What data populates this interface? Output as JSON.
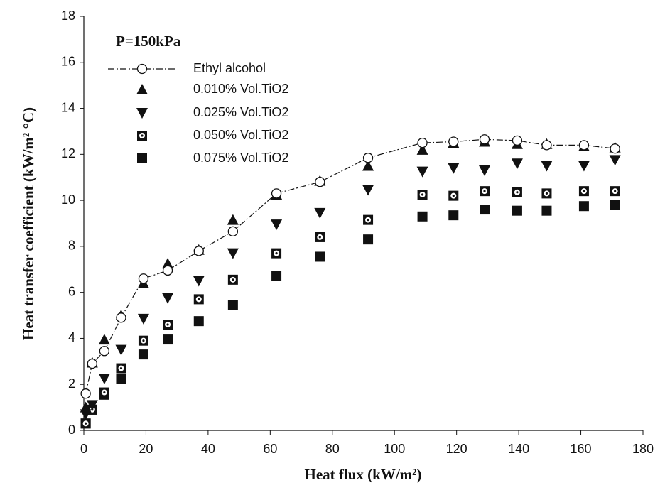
{
  "chart_data": {
    "type": "scatter",
    "annotation": "P=150kPa",
    "x_label": "Heat flux (kW/m²)",
    "y_label": "Heat transfer coefficient (kW/m² °C)",
    "x": [
      0.6,
      2.7,
      6.6,
      12,
      19.2,
      27,
      37,
      48,
      62,
      76,
      91.5,
      109,
      119,
      129,
      139.5,
      149,
      161,
      171
    ],
    "series": [
      {
        "name": "Ethyl alcohol",
        "color": "#111111",
        "marker": "open-circle",
        "line": "dash-dot",
        "values": [
          1.6,
          2.9,
          3.45,
          4.9,
          6.6,
          6.95,
          7.8,
          8.65,
          10.3,
          10.8,
          11.85,
          12.5,
          12.55,
          12.65,
          12.6,
          12.4,
          12.4,
          12.25
        ]
      },
      {
        "name": "0.010% Vol.TiO2",
        "color": "#111111",
        "marker": "triangle-up",
        "values": [
          1.0,
          2.95,
          3.95,
          5.0,
          6.4,
          7.25,
          7.85,
          9.15,
          10.25,
          10.85,
          11.5,
          12.2,
          12.5,
          12.55,
          12.45,
          12.45,
          12.35,
          12.3
        ]
      },
      {
        "name": "0.025% Vol.TiO2",
        "color": "#111111",
        "marker": "triangle-down",
        "values": [
          0.7,
          1.1,
          2.25,
          3.5,
          4.85,
          5.75,
          6.5,
          7.7,
          8.95,
          9.45,
          10.45,
          11.25,
          11.4,
          11.3,
          11.6,
          11.5,
          11.5,
          11.75
        ]
      },
      {
        "name": "0.050% Vol.TiO2",
        "color": "#111111",
        "marker": "dotted-square",
        "values": [
          0.3,
          0.9,
          1.65,
          2.7,
          3.9,
          4.6,
          5.7,
          6.55,
          7.7,
          8.4,
          9.15,
          10.25,
          10.2,
          10.4,
          10.35,
          10.3,
          10.4,
          10.4
        ]
      },
      {
        "name": "0.075% Vol.TiO2",
        "color": "#111111",
        "marker": "square",
        "values": [
          0.3,
          0.9,
          1.55,
          2.25,
          3.3,
          3.95,
          4.75,
          5.45,
          6.7,
          7.55,
          8.3,
          9.3,
          9.35,
          9.6,
          9.55,
          9.55,
          9.75,
          9.8
        ]
      }
    ],
    "xlim": [
      0,
      180
    ],
    "xticks": [
      0,
      20,
      40,
      60,
      80,
      100,
      120,
      140,
      160,
      180
    ],
    "ylim": [
      0,
      18
    ],
    "yticks": [
      0,
      2,
      4,
      6,
      8,
      10,
      12,
      14,
      16,
      18
    ],
    "grid": false
  }
}
